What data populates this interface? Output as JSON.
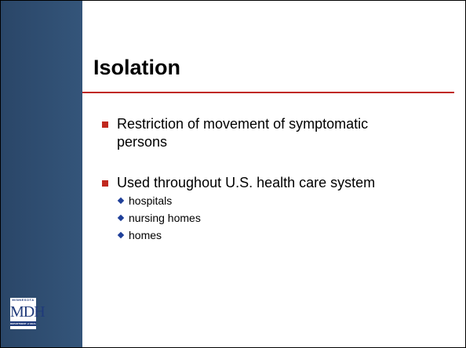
{
  "title": "Isolation",
  "bullets": [
    {
      "text": "Restriction of movement of symptomatic persons",
      "subs": []
    },
    {
      "text": "Used throughout U.S. health care system",
      "subs": [
        "hospitals",
        "nursing homes",
        "homes"
      ]
    }
  ],
  "logo": {
    "top": "MINNESOTA",
    "name": "MDH",
    "bottom": "DEPARTMENT of HEALTH"
  }
}
